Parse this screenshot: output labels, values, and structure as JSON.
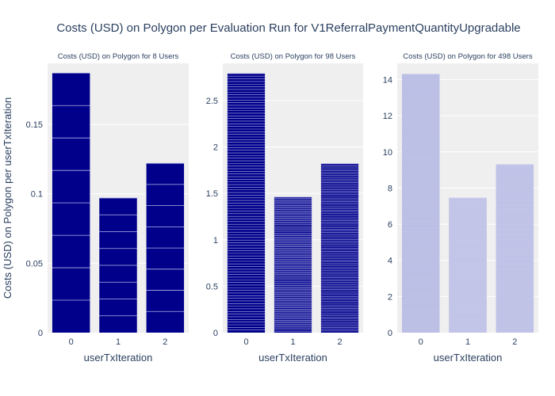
{
  "title": "Costs (USD) on Polygon per Evaluation Run for V1ReferralPaymentQuantityUpgradable",
  "ylabel": "Costs (USD) on Polygon per userTxIteration",
  "chart_data": [
    {
      "type": "bar",
      "title": "Costs (USD) on Polygon for 8 Users",
      "xlabel": "userTxIteration",
      "categories": [
        "0",
        "1",
        "2"
      ],
      "values": [
        0.187,
        0.097,
        0.122
      ],
      "segments": [
        8,
        8,
        8
      ],
      "ylim": [
        0,
        0.194
      ],
      "yticks": [
        0,
        0.05,
        0.1,
        0.15
      ],
      "ytick_labels": [
        "0",
        "0.05",
        "0.1",
        "0.15"
      ],
      "bar_color": "#00008b",
      "segment_line_color": "#b3b3e6",
      "grid": true
    },
    {
      "type": "bar",
      "title": "Costs (USD) on Polygon for 98 Users",
      "xlabel": "userTxIteration",
      "categories": [
        "0",
        "1",
        "2"
      ],
      "values": [
        2.79,
        1.46,
        1.82
      ],
      "segments": [
        98,
        98,
        98
      ],
      "ylim": [
        0,
        2.9
      ],
      "yticks": [
        0,
        0.5,
        1,
        1.5,
        2,
        2.5
      ],
      "ytick_labels": [
        "0",
        "0.5",
        "1",
        "1.5",
        "2",
        "2.5"
      ],
      "bar_color": "#00008b",
      "segment_line_color": "#b3b3e6",
      "grid": true
    },
    {
      "type": "bar",
      "title": "Costs (USD) on Polygon for 498 Users",
      "xlabel": "userTxIteration",
      "categories": [
        "0",
        "1",
        "2"
      ],
      "values": [
        14.3,
        7.45,
        9.3
      ],
      "segments": [
        498,
        498,
        498
      ],
      "ylim": [
        0,
        14.9
      ],
      "yticks": [
        0,
        2,
        4,
        6,
        8,
        10,
        12,
        14
      ],
      "ytick_labels": [
        "0",
        "2",
        "4",
        "6",
        "8",
        "10",
        "12",
        "14"
      ],
      "bar_color": "#b0b5e0",
      "segment_line_color": "#c8cceb",
      "grid": true
    }
  ]
}
